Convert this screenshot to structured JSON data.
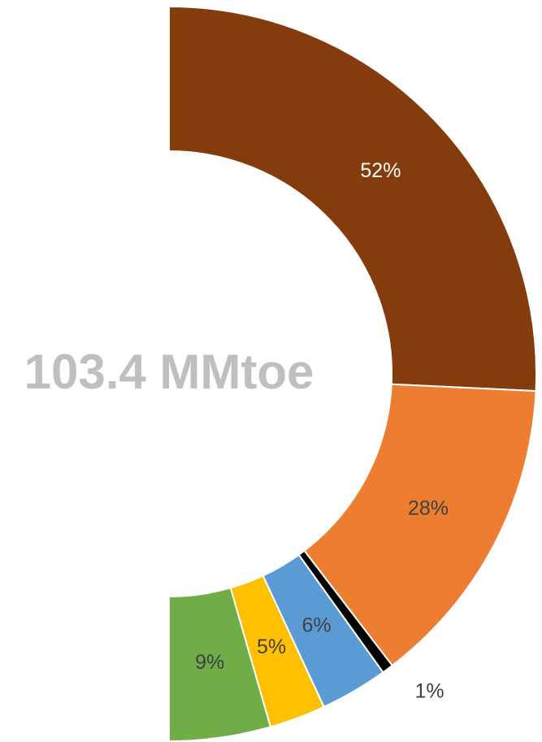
{
  "chart_data": {
    "type": "half-donut",
    "center_label": "103.4 MMtoe",
    "values": [
      52,
      28,
      1,
      6,
      5,
      9
    ],
    "value_labels": [
      "52%",
      "28%",
      "1%",
      "6%",
      "5%",
      "9%"
    ],
    "colors": [
      "#843c0c",
      "#ed7d31",
      "#000000",
      "#5b9bd5",
      "#ffc000",
      "#70ad47"
    ]
  }
}
